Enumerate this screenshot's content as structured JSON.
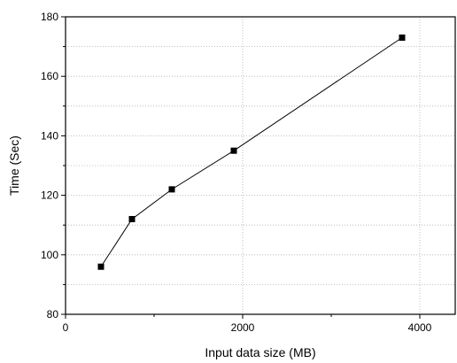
{
  "chart_data": {
    "type": "line",
    "title": "",
    "xlabel": "Input data size (MB)",
    "ylabel": "Time (Sec)",
    "xlim": [
      0,
      4400
    ],
    "ylim": [
      80,
      180
    ],
    "x_ticks": [
      {
        "value": 0,
        "label": "0"
      },
      {
        "value": 2000,
        "label": "2000"
      },
      {
        "value": 4000,
        "label": "4000"
      }
    ],
    "x_minor_ticks": [
      1000,
      3000
    ],
    "y_ticks": [
      {
        "value": 80,
        "label": "80"
      },
      {
        "value": 100,
        "label": "100"
      },
      {
        "value": 120,
        "label": "120"
      },
      {
        "value": 140,
        "label": "140"
      },
      {
        "value": 160,
        "label": "160"
      },
      {
        "value": 180,
        "label": "180"
      }
    ],
    "y_minor_ticks": [
      90,
      110,
      130,
      150,
      170
    ],
    "grid": true,
    "grid_style": "dotted",
    "marker": "square",
    "line_color": "#000000",
    "marker_color": "#000000",
    "series": [
      {
        "x": [
          400,
          750,
          1200,
          1900,
          3800
        ],
        "y": [
          96,
          112,
          122,
          135,
          173
        ]
      }
    ]
  }
}
